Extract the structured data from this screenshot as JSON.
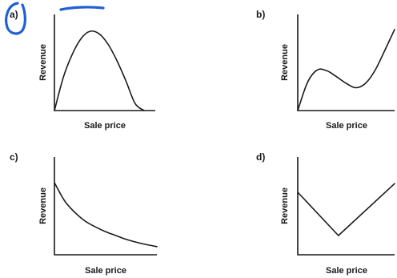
{
  "annotation_color": "#1f5fd6",
  "chart_data": [
    {
      "type": "line",
      "panel": "a)",
      "xlabel": "Sale price",
      "ylabel": "Revenue",
      "xlim": [
        0,
        10
      ],
      "ylim": [
        0,
        10
      ],
      "x": [
        0,
        1,
        2,
        3,
        4,
        5,
        6,
        7,
        8,
        9,
        10
      ],
      "series": [
        {
          "values": [
            0,
            3.8,
            6.4,
            8.2,
            9.0,
            8.7,
            7.5,
            5.6,
            3.3,
            0.8,
            0
          ]
        }
      ]
    },
    {
      "type": "line",
      "panel": "b)",
      "xlabel": "Sale price",
      "ylabel": "Revenue",
      "xlim": [
        0,
        10
      ],
      "ylim": [
        0,
        10
      ],
      "x": [
        0,
        1,
        2,
        3,
        4,
        5,
        6,
        7,
        8,
        9,
        10
      ],
      "series": [
        {
          "values": [
            0,
            3.8,
            5.5,
            5.4,
            4.6,
            3.7,
            3.1,
            3.7,
            5.5,
            8.2,
            11.0
          ]
        }
      ]
    },
    {
      "type": "line",
      "panel": "c)",
      "xlabel": "Sale price",
      "ylabel": "Revenue",
      "xlim": [
        0,
        10
      ],
      "ylim": [
        0,
        10
      ],
      "x": [
        0,
        1,
        2,
        3,
        4,
        5,
        6,
        7,
        8,
        9,
        10
      ],
      "series": [
        {
          "values": [
            7.5,
            5.6,
            4.4,
            3.5,
            2.9,
            2.4,
            2.0,
            1.6,
            1.3,
            1.05,
            0.85
          ]
        }
      ]
    },
    {
      "type": "line",
      "panel": "d)",
      "xlabel": "Sale price",
      "ylabel": "Revenue",
      "xlim": [
        0,
        10
      ],
      "ylim": [
        0,
        10
      ],
      "x": [
        0,
        4.2,
        10
      ],
      "series": [
        {
          "values": [
            6.5,
            2.0,
            7.4
          ]
        }
      ]
    }
  ]
}
